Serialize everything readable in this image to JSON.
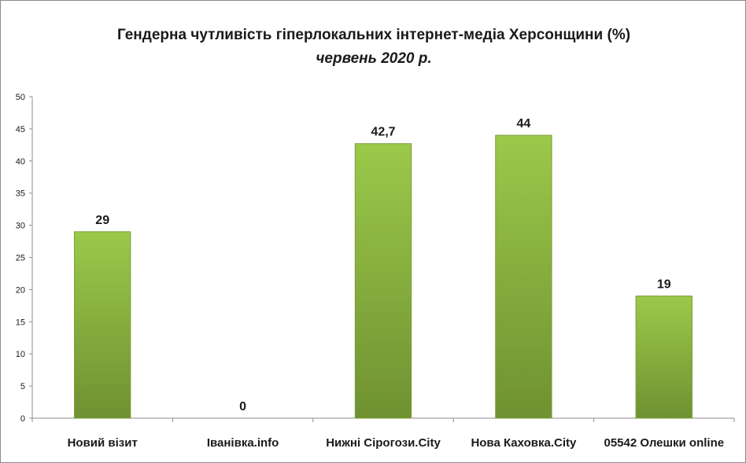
{
  "chart_data": {
    "type": "bar",
    "title": "Гендерна чутливість гіперлокальних інтернет-медіа Херсонщини (%)",
    "subtitle": "червень 2020 р.",
    "categories": [
      "Новий візит",
      "Іванівка.info",
      "Нижні Сірогози.City",
      "Нова Каховка.City",
      "05542 Олешки online"
    ],
    "values": [
      29,
      0,
      42.7,
      44,
      19
    ],
    "data_labels": [
      "29",
      "0",
      "42,7",
      "44",
      "19"
    ],
    "ylim": [
      0,
      50
    ],
    "yticks": [
      0,
      5,
      10,
      15,
      20,
      25,
      30,
      35,
      40,
      45,
      50
    ],
    "xlabel": "",
    "ylabel": "",
    "grid": false,
    "legend": "none",
    "bar_color_top": "#9bc94a",
    "bar_color_bottom": "#6f9131",
    "bar_edge": "#7a9e3a"
  }
}
